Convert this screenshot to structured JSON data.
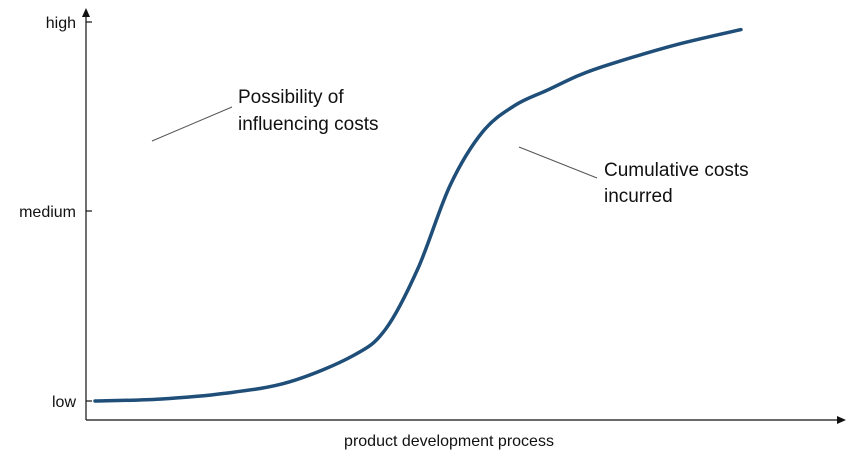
{
  "chart_data": {
    "type": "line",
    "title": "",
    "xlabel": "product development process",
    "ylabel": "",
    "y_tick_labels": [
      "low",
      "medium",
      "high"
    ],
    "y_tick_values": [
      0,
      0.5,
      1
    ],
    "ylim": [
      0,
      1
    ],
    "xlim": [
      0,
      1
    ],
    "grid": false,
    "colors": {
      "curve": "#1f4e79",
      "axis": "#111111",
      "leader": "#555555"
    },
    "series": [
      {
        "x": [
          0.0,
          0.1,
          0.2,
          0.3,
          0.4,
          0.45,
          0.5,
          0.55,
          0.6,
          0.65,
          0.7,
          0.75,
          0.8,
          0.9,
          1.0
        ],
        "y": [
          0.0,
          0.005,
          0.02,
          0.05,
          0.12,
          0.19,
          0.35,
          0.57,
          0.71,
          0.78,
          0.82,
          0.86,
          0.89,
          0.94,
          0.98
        ]
      }
    ],
    "annotations": [
      {
        "id": "influence",
        "lines": [
          "Possibility of",
          "influencing costs"
        ]
      },
      {
        "id": "cumulative",
        "lines": [
          "Cumulative costs",
          "incurred"
        ]
      }
    ]
  }
}
